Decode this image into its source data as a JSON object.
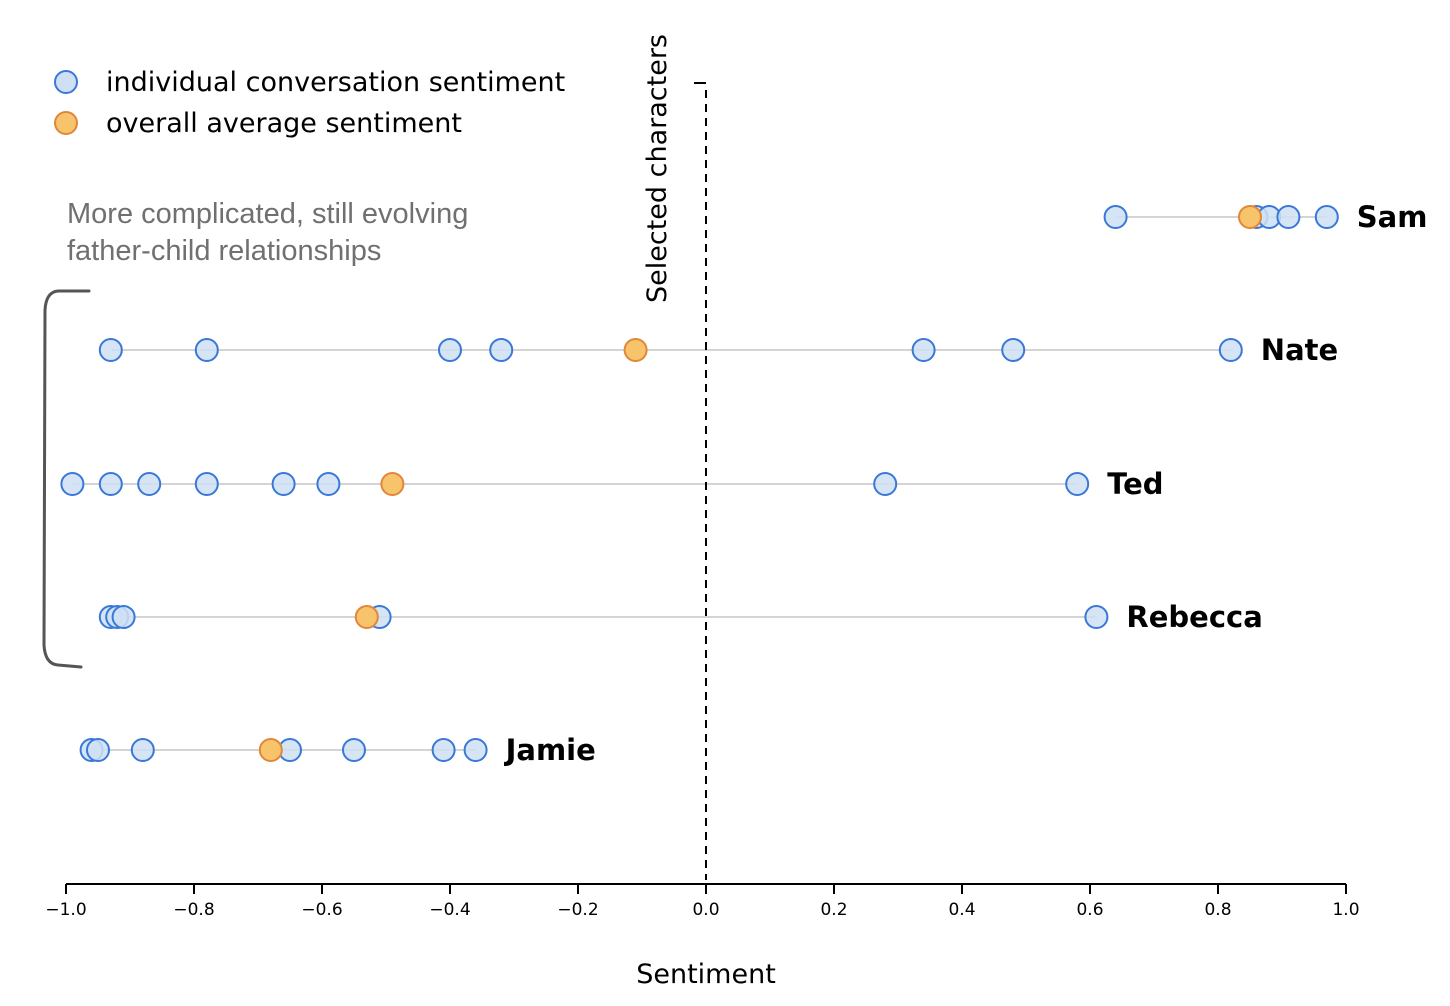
{
  "chart_data": {
    "type": "scatter",
    "xlabel": "Sentiment",
    "xlim": [
      -1.0,
      1.0
    ],
    "x_ticks": [
      "−1.0",
      "−0.8",
      "−0.6",
      "−0.4",
      "−0.2",
      "0.0",
      "0.2",
      "0.4",
      "0.6",
      "0.8",
      "1.0"
    ],
    "x_tick_values": [
      -1.0,
      -0.8,
      -0.6,
      -0.4,
      -0.2,
      0.0,
      0.2,
      0.4,
      0.6,
      0.8,
      1.0
    ],
    "reference_line": {
      "x": 0.0,
      "label": "Selected characters"
    },
    "legend": {
      "placement": "top-left",
      "items": [
        {
          "label": "individual conversation sentiment",
          "color": "#cfe0f5",
          "edge": "#3a78d8"
        },
        {
          "label": "overall average sentiment",
          "color": "#f7c36b",
          "edge": "#e0873a"
        }
      ]
    },
    "annotation": {
      "lines": [
        "More complicated, still evolving",
        "father-child relationships"
      ],
      "brackets": [
        "Nate",
        "Ted",
        "Rebecca"
      ]
    },
    "series": [
      {
        "name": "Sam",
        "values": [
          0.64,
          0.86,
          0.88,
          0.91,
          0.97
        ],
        "average": 0.85
      },
      {
        "name": "Nate",
        "values": [
          -0.93,
          -0.78,
          -0.4,
          -0.32,
          0.34,
          0.48,
          0.82
        ],
        "average": -0.11
      },
      {
        "name": "Ted",
        "values": [
          -0.99,
          -0.93,
          -0.87,
          -0.78,
          -0.66,
          -0.59,
          0.28,
          0.58
        ],
        "average": -0.49
      },
      {
        "name": "Rebecca",
        "values": [
          -0.93,
          -0.92,
          -0.91,
          -0.51,
          0.61
        ],
        "average": -0.53
      },
      {
        "name": "Jamie",
        "values": [
          -0.96,
          -0.95,
          -0.88,
          -0.65,
          -0.55,
          -0.41,
          -0.36
        ],
        "average": -0.68
      }
    ]
  }
}
